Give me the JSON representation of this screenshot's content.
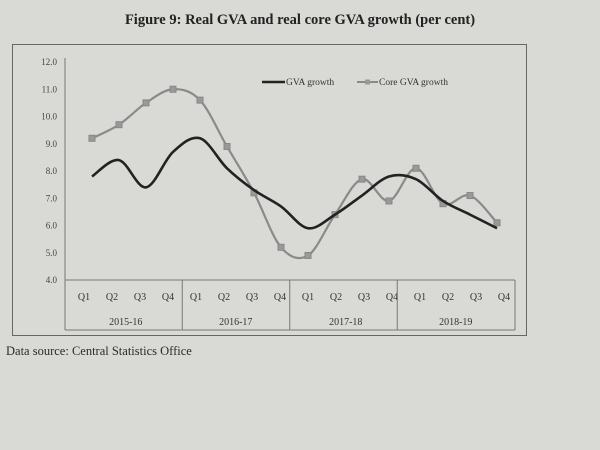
{
  "chart_data": {
    "type": "line",
    "title": "Figure 9: Real GVA and real core GVA growth (per cent)",
    "categories": [
      "Q1",
      "Q2",
      "Q3",
      "Q4",
      "Q1",
      "Q2",
      "Q3",
      "Q4",
      "Q1",
      "Q2",
      "Q3",
      "Q4",
      "Q1",
      "Q2",
      "Q3",
      "Q4"
    ],
    "groups": [
      "2015-16",
      "2016-17",
      "2017-18",
      "2018-19"
    ],
    "ylim": [
      4.0,
      12.0
    ],
    "yticks": [
      "4.0",
      "5.0",
      "6.0",
      "7.0",
      "8.0",
      "9.0",
      "10.0",
      "11.0",
      "12.0"
    ],
    "legend_position": "top-right",
    "series": [
      {
        "name": "GVA growth",
        "color": "#222222",
        "marker": "none",
        "values": [
          7.8,
          8.4,
          7.4,
          8.7,
          9.2,
          8.1,
          7.3,
          6.7,
          5.9,
          6.4,
          7.1,
          7.8,
          7.7,
          6.9,
          6.4,
          5.9
        ]
      },
      {
        "name": "Core GVA growth",
        "color": "#8a8a8a",
        "marker": "square",
        "values": [
          9.2,
          9.7,
          10.5,
          11.0,
          10.6,
          8.9,
          7.2,
          5.2,
          4.9,
          6.4,
          7.7,
          6.9,
          8.1,
          6.8,
          7.1,
          6.1
        ]
      }
    ]
  },
  "source": "Data source: Central Statistics Office"
}
